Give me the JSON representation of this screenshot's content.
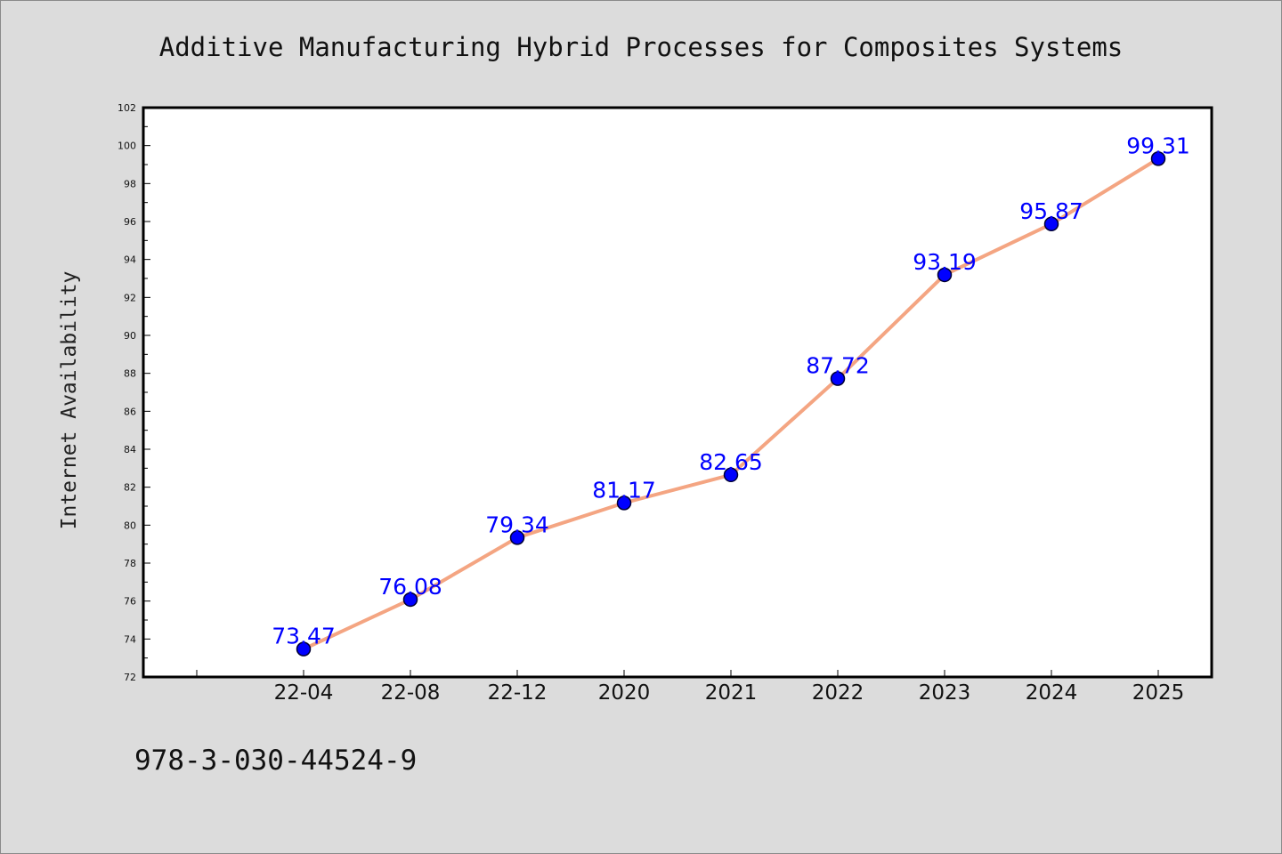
{
  "chart_data": {
    "type": "line",
    "title": "Additive Manufacturing Hybrid Processes for Composites Systems",
    "xlabel": "",
    "ylabel": "Internet Availability",
    "categories": [
      "22-04",
      "22-08",
      "22-12",
      "2020",
      "2021",
      "2022",
      "2023",
      "2024",
      "2025"
    ],
    "series": [
      {
        "values": [
          73.47,
          76.08,
          79.34,
          81.17,
          82.65,
          87.72,
          93.19,
          95.87,
          99.31
        ],
        "line_color": "#f4a582",
        "marker_color": "#0000ff"
      }
    ],
    "data_labels": [
      "73.47",
      "76.08",
      "79.34",
      "81.17",
      "82.65",
      "87.72",
      "93.19",
      "95.87",
      "99.31"
    ],
    "yticks": [
      "72",
      "74",
      "76",
      "78",
      "80",
      "82",
      "84",
      "86",
      "88",
      "90",
      "92",
      "94",
      "96",
      "98",
      "100",
      "102"
    ],
    "ylim": [
      72,
      102
    ],
    "grid": false,
    "legend": "none"
  },
  "footnote": "978-3-030-44524-9"
}
